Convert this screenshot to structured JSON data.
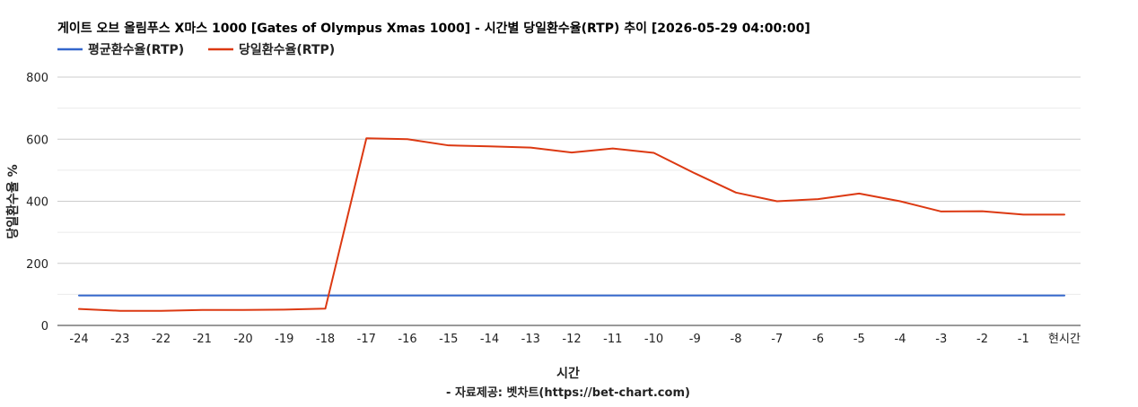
{
  "chart_data": {
    "type": "line",
    "title": "게이트 오브 올림푸스 X마스 1000 [Gates of Olympus Xmas 1000] - 시간별 당일환수율(RTP) 추이 [2026-05-29 04:00:00]",
    "xlabel": "시간",
    "ylabel": "당일환수율 %",
    "source_note": "- 자료제공: 벳차트(https://bet-chart.com)",
    "ylim": [
      0,
      800
    ],
    "y_ticks": [
      0,
      200,
      400,
      600,
      800
    ],
    "grid": true,
    "legend_position": "top-left",
    "categories": [
      "-24",
      "-23",
      "-22",
      "-21",
      "-20",
      "-19",
      "-18",
      "-17",
      "-16",
      "-15",
      "-14",
      "-13",
      "-12",
      "-11",
      "-10",
      "-9",
      "-8",
      "-7",
      "-6",
      "-5",
      "-4",
      "-3",
      "-2",
      "-1",
      "현시간"
    ],
    "series": [
      {
        "name": "평균환수율(RTP)",
        "color": "#3366cc",
        "values": [
          96.5,
          96.5,
          96.5,
          96.5,
          96.5,
          96.5,
          96.5,
          96.5,
          96.5,
          96.5,
          96.5,
          96.5,
          96.5,
          96.5,
          96.5,
          96.5,
          96.5,
          96.5,
          96.5,
          96.5,
          96.5,
          96.5,
          96.5,
          96.5,
          96.5
        ]
      },
      {
        "name": "당일환수율(RTP)",
        "color": "#dc3912",
        "values": [
          53,
          47,
          47,
          50,
          50,
          51,
          54,
          603,
          600,
          580,
          577,
          573,
          557,
          570,
          556,
          490,
          428,
          400,
          407,
          425,
          400,
          367,
          368,
          357,
          357
        ]
      }
    ]
  }
}
